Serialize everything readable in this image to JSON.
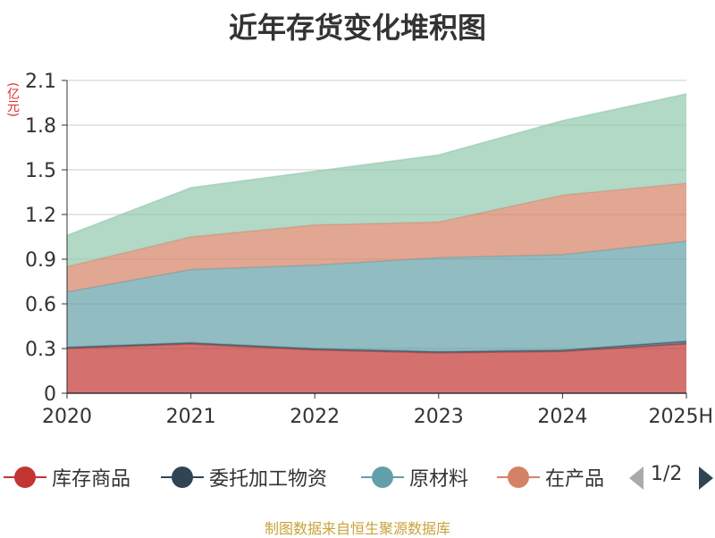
{
  "chart_data": {
    "type": "area",
    "stacked": true,
    "title": "近年存货变化堆积图",
    "ylabel": "(亿元)",
    "categories": [
      "2020",
      "2021",
      "2022",
      "2023",
      "2024",
      "2025H"
    ],
    "yticks": [
      "0",
      "0.3",
      "0.6",
      "0.9",
      "1.2",
      "1.5",
      "1.8",
      "2.1"
    ],
    "ylim": [
      0,
      2.1
    ],
    "grid": true,
    "series": [
      {
        "name": "库存商品",
        "color": "#c23531",
        "values": [
          0.3,
          0.33,
          0.29,
          0.27,
          0.28,
          0.33
        ]
      },
      {
        "name": "委托加工物资",
        "color": "#2f4554",
        "values": [
          0.01,
          0.01,
          0.01,
          0.01,
          0.01,
          0.02
        ]
      },
      {
        "name": "原材料",
        "color": "#61a0a8",
        "values": [
          0.37,
          0.49,
          0.56,
          0.63,
          0.64,
          0.67
        ]
      },
      {
        "name": "在产品",
        "color": "#d48265",
        "values": [
          0.17,
          0.22,
          0.27,
          0.24,
          0.4,
          0.39
        ]
      },
      {
        "name": "",
        "color": "#91c7ae",
        "values": [
          0.21,
          0.33,
          0.36,
          0.45,
          0.5,
          0.6
        ]
      }
    ],
    "legend": {
      "position": "bottom",
      "page": "1/2"
    }
  },
  "source": "制图数据来自恒生聚源数据库"
}
